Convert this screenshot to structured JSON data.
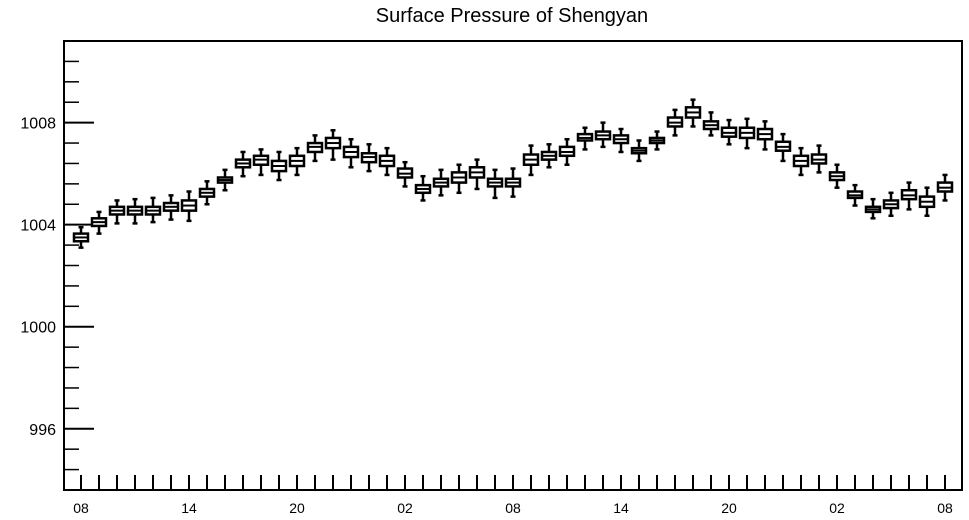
{
  "chart_data": {
    "type": "boxplot",
    "title": "Surface Pressure of Shengyan",
    "xlabel": "",
    "ylabel": "",
    "ylim": [
      993.6,
      1011.2
    ],
    "y_ticks": [
      996,
      1000,
      1004,
      1008
    ],
    "x_tick_labels": [
      "08",
      "14",
      "20",
      "02",
      "08",
      "14",
      "20",
      "02",
      "08"
    ],
    "x_tick_hours": [
      8,
      14,
      20,
      26,
      32,
      38,
      44,
      50,
      56
    ],
    "hours": [
      8,
      9,
      10,
      11,
      12,
      13,
      14,
      15,
      16,
      17,
      18,
      19,
      20,
      21,
      22,
      23,
      24,
      25,
      26,
      27,
      28,
      29,
      30,
      31,
      32,
      33,
      34,
      35,
      36,
      37,
      38,
      39,
      40,
      41,
      42,
      43,
      44,
      45,
      46,
      47,
      48,
      49,
      50,
      51,
      52,
      53,
      54,
      55,
      56
    ],
    "median": [
      1003.5,
      1004.1,
      1004.55,
      1004.55,
      1004.55,
      1004.7,
      1004.75,
      1005.25,
      1005.75,
      1006.4,
      1006.55,
      1006.3,
      1006.5,
      1007.05,
      1007.2,
      1006.85,
      1006.65,
      1006.5,
      1006.0,
      1005.4,
      1005.65,
      1005.85,
      1006.05,
      1005.65,
      1005.65,
      1006.55,
      1006.7,
      1006.85,
      1007.4,
      1007.5,
      1007.35,
      1006.9,
      1007.3,
      1008.0,
      1008.4,
      1007.9,
      1007.6,
      1007.6,
      1007.55,
      1007.05,
      1006.5,
      1006.55,
      1005.9,
      1005.15,
      1004.6,
      1004.8,
      1005.15,
      1004.9,
      1005.45
    ],
    "q1": [
      1003.35,
      1003.95,
      1004.4,
      1004.4,
      1004.4,
      1004.55,
      1004.55,
      1005.1,
      1005.65,
      1006.25,
      1006.35,
      1006.1,
      1006.3,
      1006.85,
      1007.0,
      1006.65,
      1006.45,
      1006.3,
      1005.85,
      1005.25,
      1005.5,
      1005.65,
      1005.85,
      1005.5,
      1005.5,
      1006.35,
      1006.55,
      1006.7,
      1007.3,
      1007.35,
      1007.2,
      1006.8,
      1007.2,
      1007.85,
      1008.2,
      1007.75,
      1007.45,
      1007.4,
      1007.35,
      1006.9,
      1006.3,
      1006.4,
      1005.75,
      1005.05,
      1004.5,
      1004.65,
      1005.0,
      1004.7,
      1005.3
    ],
    "q3": [
      1003.65,
      1004.25,
      1004.7,
      1004.7,
      1004.7,
      1004.85,
      1004.95,
      1005.4,
      1005.85,
      1006.55,
      1006.7,
      1006.5,
      1006.7,
      1007.2,
      1007.4,
      1007.05,
      1006.8,
      1006.7,
      1006.2,
      1005.55,
      1005.8,
      1006.05,
      1006.25,
      1005.8,
      1005.8,
      1006.75,
      1006.85,
      1007.05,
      1007.55,
      1007.65,
      1007.5,
      1007.0,
      1007.4,
      1008.2,
      1008.6,
      1008.05,
      1007.8,
      1007.8,
      1007.75,
      1007.25,
      1006.7,
      1006.75,
      1006.05,
      1005.3,
      1004.7,
      1004.95,
      1005.35,
      1005.1,
      1005.65
    ],
    "whisker_low": [
      1003.1,
      1003.65,
      1004.05,
      1004.05,
      1004.1,
      1004.2,
      1004.15,
      1004.8,
      1005.35,
      1005.9,
      1005.95,
      1005.75,
      1005.95,
      1006.5,
      1006.55,
      1006.25,
      1006.1,
      1005.95,
      1005.5,
      1004.95,
      1005.15,
      1005.25,
      1005.4,
      1005.05,
      1005.1,
      1005.95,
      1006.25,
      1006.35,
      1006.95,
      1007.05,
      1006.85,
      1006.5,
      1006.95,
      1007.5,
      1007.85,
      1007.5,
      1007.15,
      1007.0,
      1006.95,
      1006.5,
      1005.95,
      1006.05,
      1005.45,
      1004.75,
      1004.25,
      1004.35,
      1004.6,
      1004.35,
      1004.95
    ],
    "whisker_high": [
      1003.9,
      1004.5,
      1004.95,
      1005.0,
      1005.05,
      1005.15,
      1005.3,
      1005.7,
      1006.15,
      1006.85,
      1006.95,
      1006.85,
      1007.0,
      1007.5,
      1007.7,
      1007.35,
      1007.15,
      1007.0,
      1006.45,
      1005.9,
      1006.15,
      1006.35,
      1006.55,
      1006.15,
      1006.2,
      1007.1,
      1007.15,
      1007.35,
      1007.8,
      1008.0,
      1007.75,
      1007.3,
      1007.65,
      1008.5,
      1008.9,
      1008.4,
      1008.1,
      1008.15,
      1008.05,
      1007.55,
      1007.0,
      1007.1,
      1006.35,
      1005.55,
      1005.0,
      1005.25,
      1005.65,
      1005.45,
      1005.95
    ],
    "grid": false,
    "legend": "none"
  }
}
